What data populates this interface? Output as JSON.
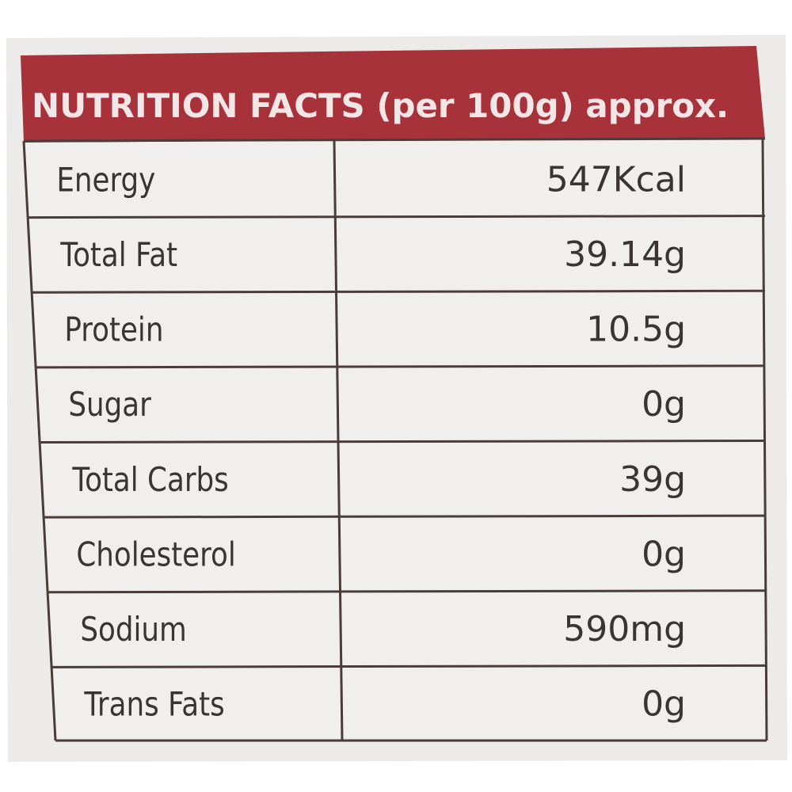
{
  "header": {
    "title": "NUTRITION FACTS (per 100g) approx."
  },
  "table": {
    "rows": [
      [
        "Energy",
        "547Kcal"
      ],
      [
        "Total Fat",
        "39.14g"
      ],
      [
        "Protein",
        "10.5g"
      ],
      [
        "Sugar",
        "0g"
      ],
      [
        "Total Carbs",
        "39g"
      ],
      [
        "Cholesterol",
        "0g"
      ],
      [
        "Sodium",
        "590mg"
      ],
      [
        "Trans Fats",
        "0g"
      ]
    ]
  }
}
